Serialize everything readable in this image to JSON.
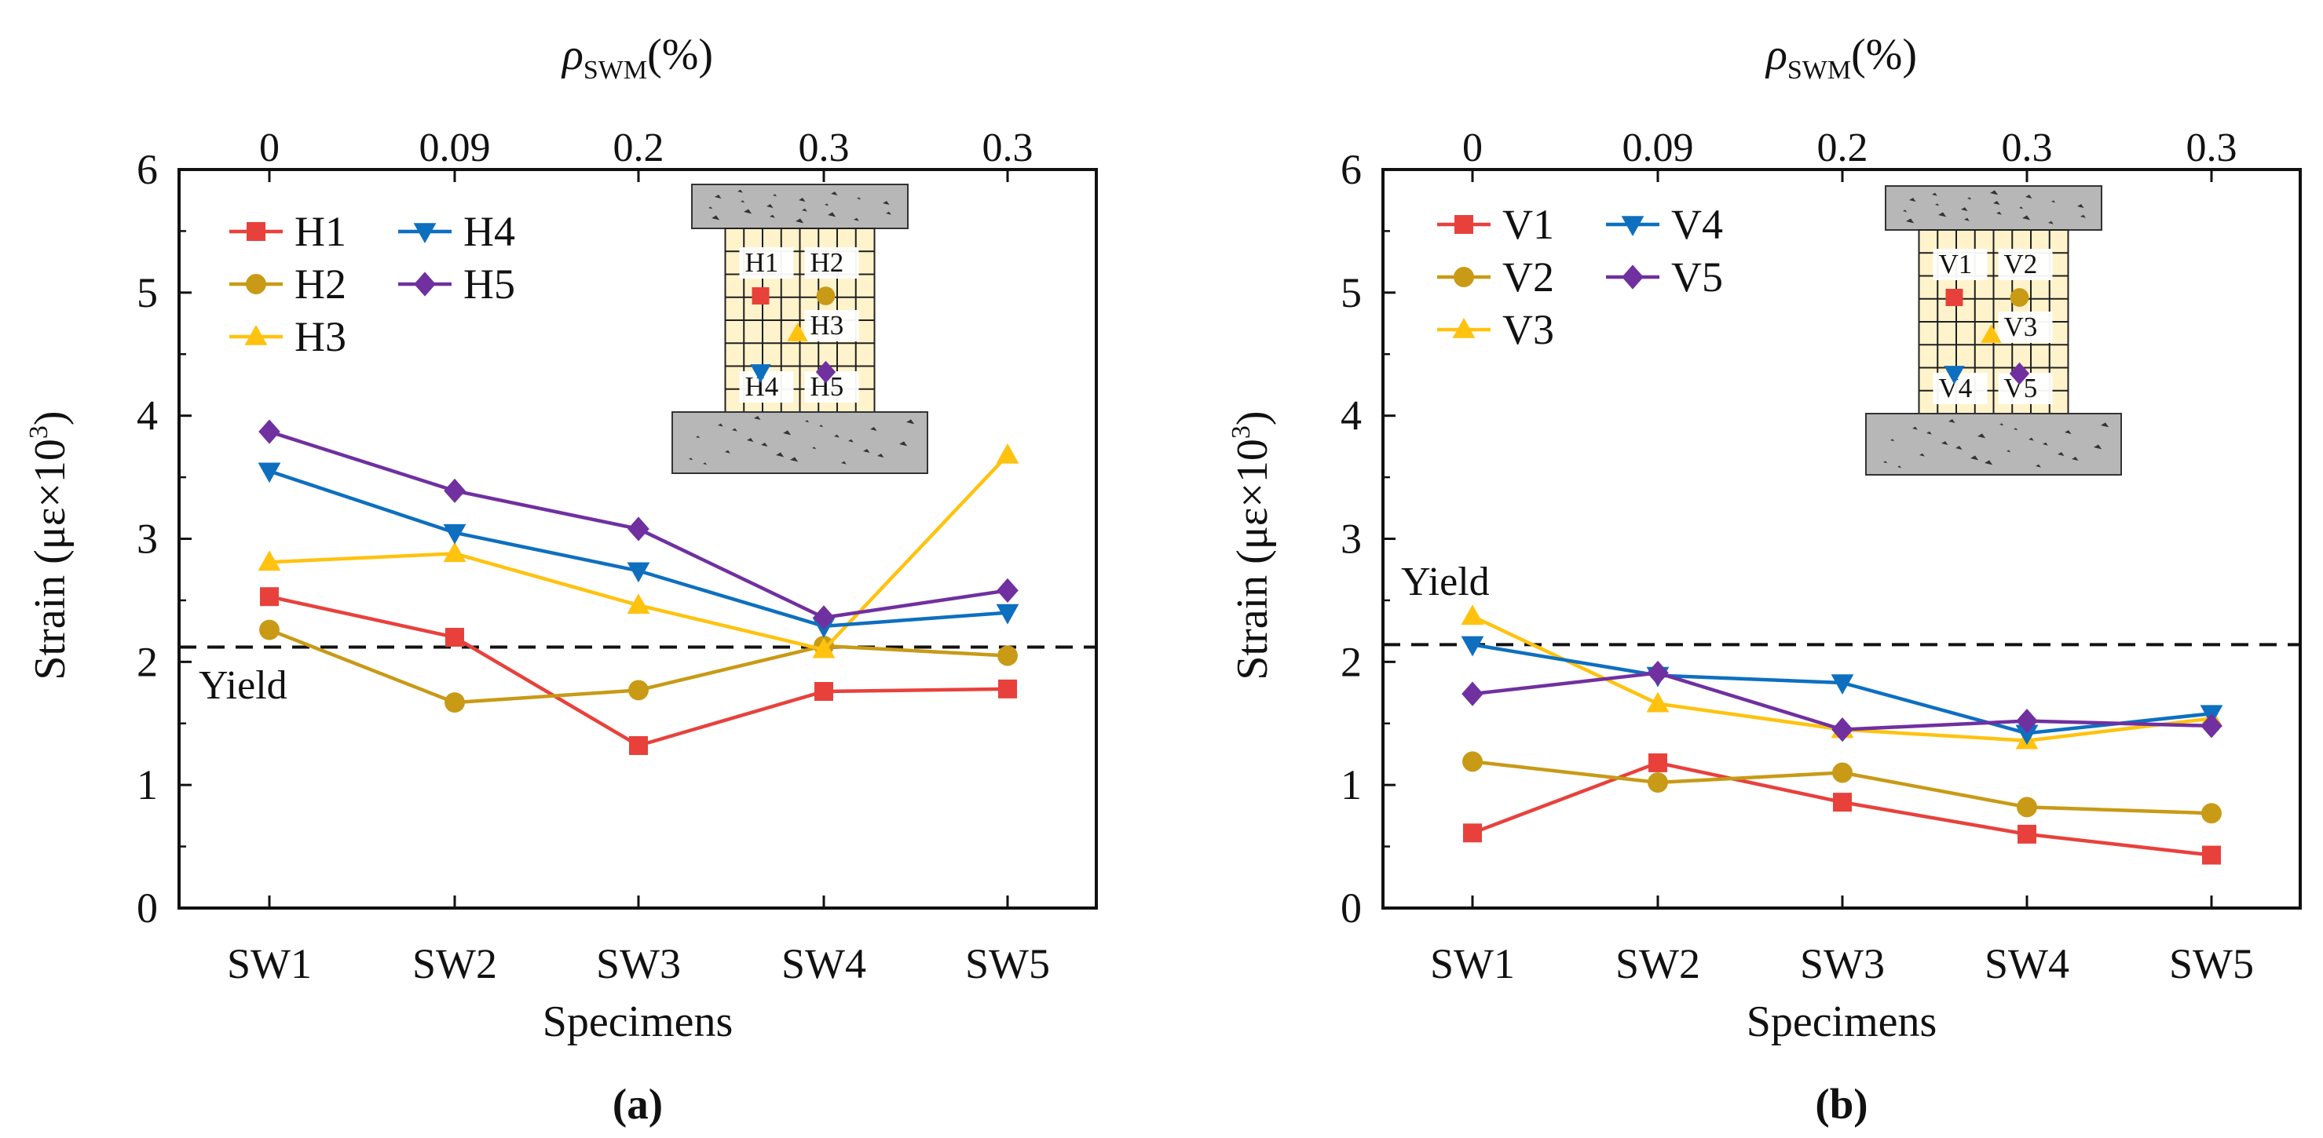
{
  "charts": [
    {
      "panel_label": "(a)",
      "xlabel": "Specimens",
      "ylabel_prefix": "Strain",
      "ylabel_unit_main": "με×10",
      "ylabel_unit_exp": "3",
      "top_axis_title_main": "ρ",
      "top_axis_title_sub": "SWM",
      "top_axis_title_tail": "(%)",
      "yield_label": "Yield",
      "legend_entries": [
        "H1",
        "H4",
        "H2",
        "H5",
        "H3"
      ],
      "inset_labels": [
        "H1",
        "H2",
        "H3",
        "H4",
        "H5"
      ]
    },
    {
      "panel_label": "(b)",
      "xlabel": "Specimens",
      "ylabel_prefix": "Strain",
      "ylabel_unit_main": "με×10",
      "ylabel_unit_exp": "3",
      "top_axis_title_main": "ρ",
      "top_axis_title_sub": "SWM",
      "top_axis_title_tail": "(%)",
      "yield_label": "Yield",
      "legend_entries": [
        "V1",
        "V4",
        "V2",
        "V5",
        "V3"
      ],
      "inset_labels": [
        "V1",
        "V2",
        "V3",
        "V4",
        "V5"
      ]
    }
  ],
  "chart_data": [
    {
      "type": "line",
      "title": "(a)",
      "xlabel": "Specimens",
      "ylabel": "Strain (με×10³)",
      "categories": [
        "SW1",
        "SW2",
        "SW3",
        "SW4",
        "SW5"
      ],
      "top_axis_title": "ρSWM (%)",
      "top_axis_ticks": [
        "0",
        "0.09",
        "0.2",
        "0.3",
        "0.3"
      ],
      "ylim": [
        0,
        6
      ],
      "yticks": [
        "0",
        "1",
        "2",
        "3",
        "4",
        "5",
        "6"
      ],
      "yield_value": 2.12,
      "series": [
        {
          "name": "H1",
          "color": "#e8413c",
          "marker": "square",
          "values": [
            2.53,
            2.2,
            1.32,
            1.76,
            1.78
          ]
        },
        {
          "name": "H2",
          "color": "#c89a16",
          "marker": "circle",
          "values": [
            2.26,
            1.67,
            1.77,
            2.13,
            2.05
          ]
        },
        {
          "name": "H3",
          "color": "#ffc20e",
          "marker": "triangle-up",
          "values": [
            2.81,
            2.88,
            2.46,
            2.1,
            3.68
          ]
        },
        {
          "name": "H4",
          "color": "#0e6fbf",
          "marker": "triangle-down",
          "values": [
            3.55,
            3.05,
            2.74,
            2.29,
            2.4
          ]
        },
        {
          "name": "H5",
          "color": "#7030a0",
          "marker": "diamond",
          "values": [
            3.87,
            3.39,
            3.08,
            2.36,
            2.58
          ]
        }
      ]
    },
    {
      "type": "line",
      "title": "(b)",
      "xlabel": "Specimens",
      "ylabel": "Strain (με×10³)",
      "categories": [
        "SW1",
        "SW2",
        "SW3",
        "SW4",
        "SW5"
      ],
      "top_axis_title": "ρSWM (%)",
      "top_axis_ticks": [
        "0",
        "0.09",
        "0.2",
        "0.3",
        "0.3"
      ],
      "ylim": [
        0,
        6
      ],
      "yticks": [
        "0",
        "1",
        "2",
        "3",
        "4",
        "5",
        "6"
      ],
      "yield_value": 2.14,
      "series": [
        {
          "name": "V1",
          "color": "#e8413c",
          "marker": "square",
          "values": [
            0.61,
            1.18,
            0.86,
            0.6,
            0.43
          ]
        },
        {
          "name": "V2",
          "color": "#c89a16",
          "marker": "circle",
          "values": [
            1.19,
            1.02,
            1.1,
            0.82,
            0.77
          ]
        },
        {
          "name": "V3",
          "color": "#ffc20e",
          "marker": "triangle-up",
          "values": [
            2.37,
            1.66,
            1.45,
            1.36,
            1.54
          ]
        },
        {
          "name": "V4",
          "color": "#0e6fbf",
          "marker": "triangle-down",
          "values": [
            2.14,
            1.89,
            1.83,
            1.42,
            1.58
          ]
        },
        {
          "name": "V5",
          "color": "#7030a0",
          "marker": "diamond",
          "values": [
            1.74,
            1.91,
            1.45,
            1.52,
            1.48
          ]
        }
      ]
    }
  ]
}
